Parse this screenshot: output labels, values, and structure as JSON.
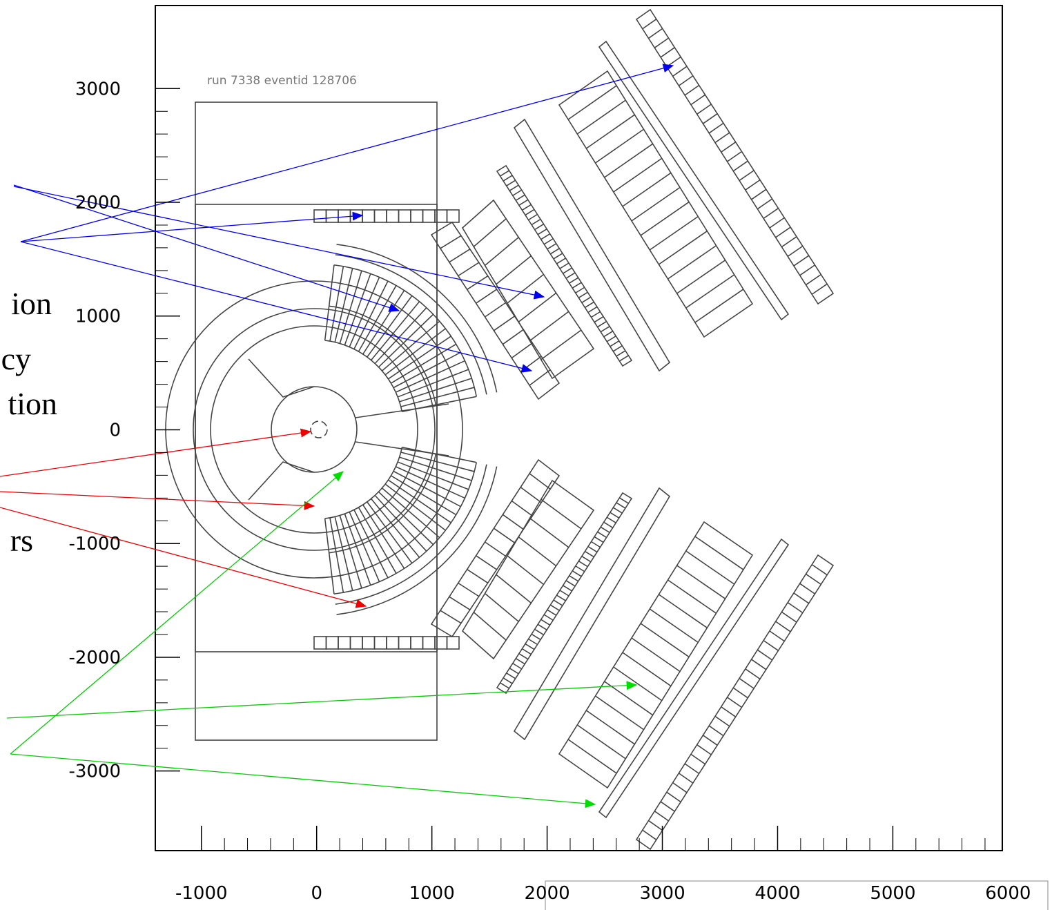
{
  "plot": {
    "annotation": "run 7338 eventid 128706",
    "xlim": [
      -1400,
      5950
    ],
    "ylim": [
      -3700,
      3730
    ],
    "xticks": [
      -1000,
      0,
      1000,
      2000,
      3000,
      4000,
      5000,
      6000
    ],
    "yticks": [
      -3000,
      -2000,
      -1000,
      0,
      1000,
      2000,
      3000
    ]
  },
  "side_labels": [
    "ion",
    "cy",
    "tion",
    "rs"
  ]
}
